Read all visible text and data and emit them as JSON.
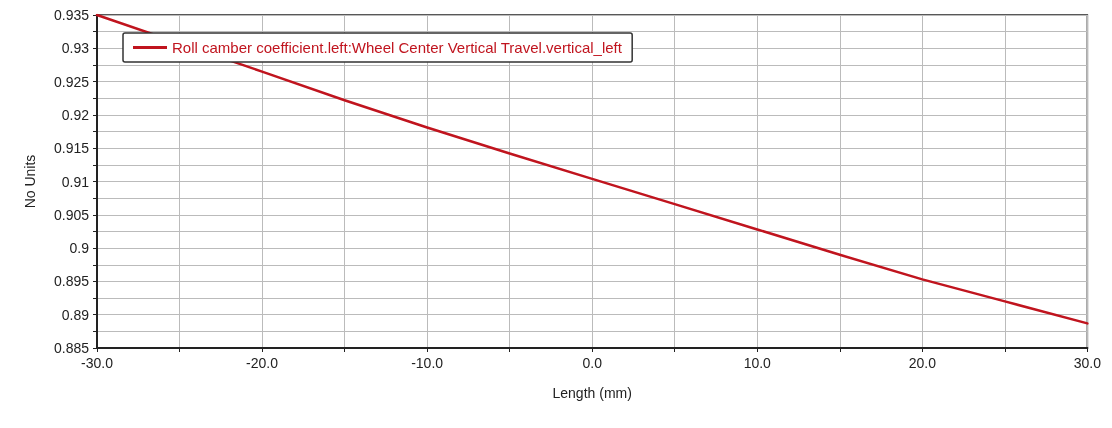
{
  "chart_data": {
    "type": "line",
    "xlabel": "Length (mm)",
    "ylabel": "No Units",
    "x": [
      -30,
      -25,
      -20,
      -15,
      -10,
      -5,
      0,
      5,
      10,
      15,
      20,
      25,
      30
    ],
    "series": [
      {
        "name": "Roll camber coefficient.left:Wheel Center Vertical Travel.vertical_left",
        "color": "#c0141e",
        "values": [
          0.935,
          null,
          0.9265,
          0.9222,
          0.9181,
          0.9142,
          0.9104,
          0.9066,
          0.9028,
          0.899,
          0.8953,
          0.892,
          0.8887
        ]
      }
    ],
    "xlim": [
      -30,
      30
    ],
    "xticks": [
      {
        "value": -30,
        "label": "-30.0"
      },
      {
        "value": -25,
        "label": null
      },
      {
        "value": -20,
        "label": "-20.0"
      },
      {
        "value": -15,
        "label": null
      },
      {
        "value": -10,
        "label": "-10.0"
      },
      {
        "value": -5,
        "label": null
      },
      {
        "value": 0,
        "label": "0.0"
      },
      {
        "value": 5,
        "label": null
      },
      {
        "value": 10,
        "label": "10.0"
      },
      {
        "value": 15,
        "label": null
      },
      {
        "value": 20,
        "label": "20.0"
      },
      {
        "value": 25,
        "label": null
      },
      {
        "value": 30,
        "label": "30.0"
      }
    ],
    "ylim": [
      0.885,
      0.935
    ],
    "yticks": [
      0.885,
      {
        "value": 0.8875,
        "label": null
      },
      0.89,
      {
        "value": 0.8925,
        "label": null
      },
      0.895,
      {
        "value": 0.8975,
        "label": null
      },
      0.9,
      {
        "value": 0.9025,
        "label": null
      },
      0.905,
      {
        "value": 0.9075,
        "label": null
      },
      0.91,
      {
        "value": 0.9125,
        "label": null
      },
      0.915,
      {
        "value": 0.9175,
        "label": null
      },
      0.92,
      {
        "value": 0.9225,
        "label": null
      },
      0.925,
      {
        "value": 0.9275,
        "label": null
      },
      0.93,
      {
        "value": 0.9325,
        "label": null
      },
      0.935
    ],
    "grid": true,
    "legend": "top left",
    "marker": "none",
    "line_style": "solid"
  }
}
